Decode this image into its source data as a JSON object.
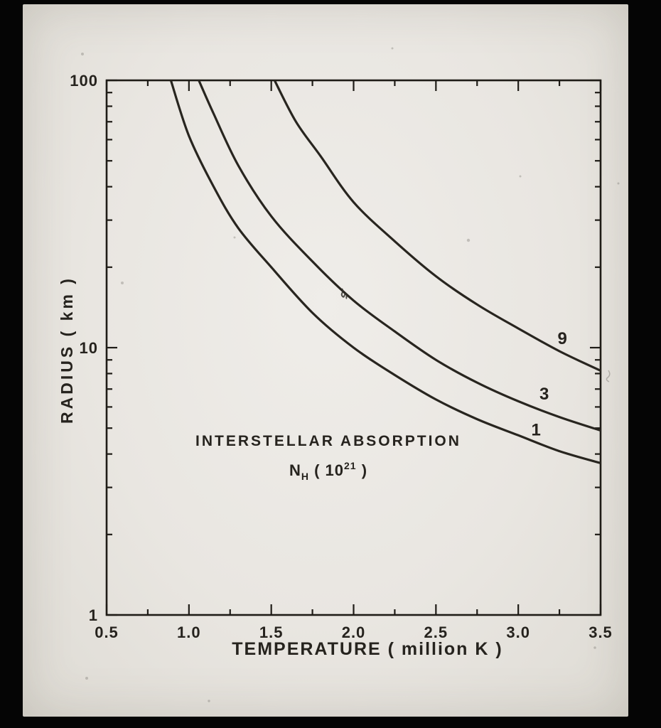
{
  "slide": {
    "background_color": "#e9e6e1",
    "border_color": "#050505"
  },
  "chart_data": {
    "type": "line",
    "title": "",
    "xlabel": "TEMPERATURE ( million K )",
    "ylabel": "RADIUS ( km )",
    "x_scale": "linear",
    "y_scale": "log",
    "x_range": [
      0.5,
      3.5
    ],
    "y_range": [
      1,
      100
    ],
    "x_major_ticks": [
      0.5,
      1.0,
      1.5,
      2.0,
      2.5,
      3.0,
      3.5
    ],
    "x_tick_labels": [
      "0.5",
      "1.0",
      "1.5",
      "2.0",
      "2.5",
      "3.0",
      "3.5"
    ],
    "x_minor_tick_step": 0.25,
    "y_major_ticks": [
      1,
      10,
      100
    ],
    "y_tick_labels": [
      "1",
      "10",
      "100"
    ],
    "grid": false,
    "legend_position": "none",
    "axis_color": "#1f1c17",
    "line_color": "#28251f",
    "annotation": {
      "title": "INTERSTELLAR ABSORPTION",
      "formula_base": "N",
      "formula_sub": "H",
      "formula_mid": " ( 10",
      "formula_sup": "21",
      "formula_end": " )"
    },
    "series": [
      {
        "name": "9",
        "label_x": 3.27,
        "label_y": 10.3,
        "points": [
          [
            1.52,
            100
          ],
          [
            1.65,
            70
          ],
          [
            1.8,
            52
          ],
          [
            2.0,
            35
          ],
          [
            2.25,
            25
          ],
          [
            2.5,
            18.5
          ],
          [
            2.75,
            14.5
          ],
          [
            3.0,
            11.8
          ],
          [
            3.25,
            9.7
          ],
          [
            3.5,
            8.2
          ]
        ]
      },
      {
        "name": "3",
        "label_x": 3.16,
        "label_y": 6.4,
        "points": [
          [
            1.06,
            100
          ],
          [
            1.15,
            75
          ],
          [
            1.3,
            48
          ],
          [
            1.5,
            31
          ],
          [
            1.75,
            21
          ],
          [
            2.0,
            15
          ],
          [
            2.25,
            11.5
          ],
          [
            2.5,
            9.0
          ],
          [
            2.75,
            7.4
          ],
          [
            3.0,
            6.3
          ],
          [
            3.25,
            5.5
          ],
          [
            3.5,
            4.9
          ]
        ]
      },
      {
        "name": "1",
        "label_x": 3.11,
        "label_y": 4.7,
        "points": [
          [
            0.89,
            100
          ],
          [
            1.0,
            62
          ],
          [
            1.15,
            40
          ],
          [
            1.3,
            28
          ],
          [
            1.5,
            20
          ],
          [
            1.75,
            13.5
          ],
          [
            2.0,
            10
          ],
          [
            2.25,
            7.9
          ],
          [
            2.5,
            6.4
          ],
          [
            2.75,
            5.4
          ],
          [
            3.0,
            4.7
          ],
          [
            3.25,
            4.1
          ],
          [
            3.5,
            3.7
          ]
        ]
      }
    ]
  }
}
